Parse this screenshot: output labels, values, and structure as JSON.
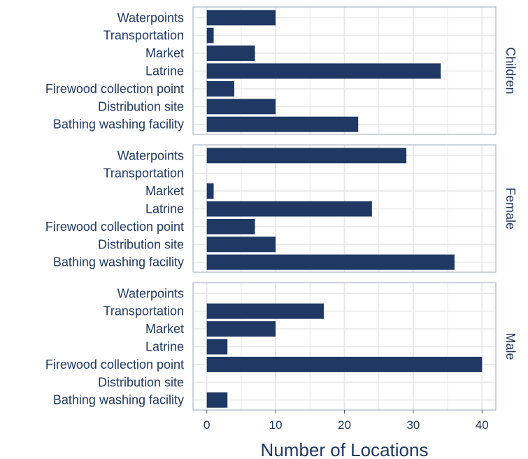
{
  "chart_data": {
    "type": "bar",
    "orientation": "horizontal",
    "categories": [
      "Waterpoints",
      "Transportation",
      "Market",
      "Latrine",
      "Firewood collection point",
      "Distribution site",
      "Bathing washing facility"
    ],
    "facets": [
      {
        "name": "Children",
        "values": [
          10,
          1,
          7,
          34,
          4,
          10,
          22
        ]
      },
      {
        "name": "Female",
        "values": [
          29,
          0,
          1,
          24,
          7,
          10,
          36
        ]
      },
      {
        "name": "Male",
        "values": [
          0,
          17,
          10,
          3,
          40,
          0,
          3
        ]
      }
    ],
    "xlabel": "Number of Locations",
    "ylabel": "",
    "xlim": [
      -2,
      42
    ],
    "xticks": [
      0,
      10,
      20,
      30,
      40
    ],
    "grid": true,
    "colors": {
      "bar": "#1f3864",
      "text": "#1f3864",
      "grid": "#e8e8e8",
      "panel_border": "#9ea6b8"
    }
  }
}
